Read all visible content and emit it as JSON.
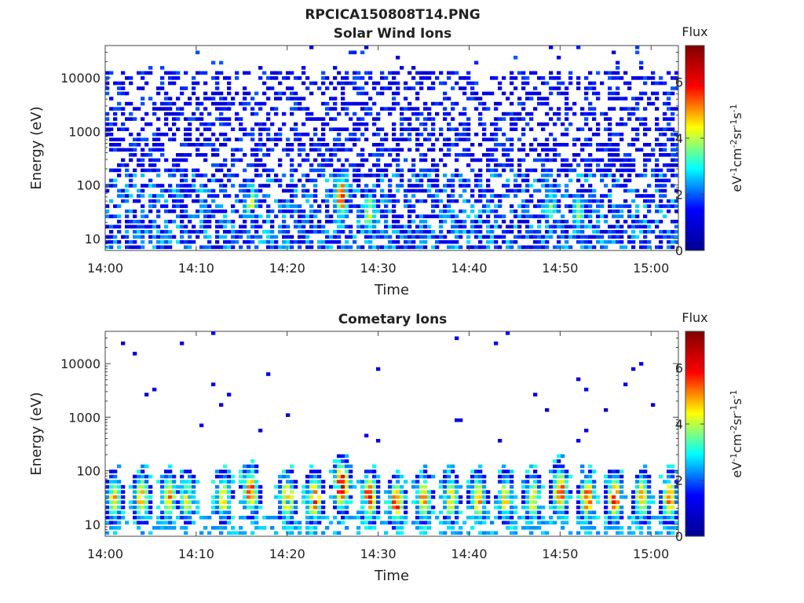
{
  "figure": {
    "title": "RPCICA150808T14.PNG"
  },
  "colormap": {
    "name": "jet",
    "stops": [
      "#00008f",
      "#0000ff",
      "#00ffff",
      "#ffff00",
      "#ff0000",
      "#800000"
    ]
  },
  "chart_data": [
    {
      "type": "heatmap",
      "title": "Solar Wind Ions",
      "xlabel": "Time",
      "ylabel": "Energy (eV)",
      "y_scale": "log",
      "ylim": [
        6,
        40000
      ],
      "xlim": [
        "14:00",
        "15:03"
      ],
      "x_ticks": [
        "14:00",
        "14:10",
        "14:20",
        "14:30",
        "14:40",
        "14:50",
        "15:00"
      ],
      "y_ticks": [
        10,
        100,
        1000,
        10000
      ],
      "y_tick_labels": [
        "10",
        "100",
        "1000",
        "10000"
      ],
      "colorbar": {
        "label_top": "Flux",
        "units": "eV-1cm-2sr-1s-1",
        "range": [
          0,
          7.3
        ],
        "ticks": [
          0,
          2,
          4,
          6
        ],
        "tick_labels": [
          "0",
          "2",
          "4",
          "6"
        ]
      },
      "features": {
        "background": "sparse low-flux (~1-2) counts from 10 eV to 20000 eV",
        "bursts": [
          {
            "time": "14:16",
            "energy_eV": 50,
            "flux": 4.5
          },
          {
            "time": "14:26",
            "energy_eV": 60,
            "flux": 6.0
          },
          {
            "time": "14:29",
            "energy_eV": 30,
            "flux": 4.5
          },
          {
            "time": "14:49",
            "energy_eV": 40,
            "flux": 4.0
          },
          {
            "time": "14:52",
            "energy_eV": 30,
            "flux": 4.0
          }
        ]
      }
    },
    {
      "type": "heatmap",
      "title": "Cometary Ions",
      "xlabel": "Time",
      "ylabel": "Energy (eV)",
      "y_scale": "log",
      "ylim": [
        6,
        40000
      ],
      "xlim": [
        "14:00",
        "15:03"
      ],
      "x_ticks": [
        "14:00",
        "14:10",
        "14:20",
        "14:30",
        "14:40",
        "14:50",
        "15:00"
      ],
      "y_ticks": [
        10,
        100,
        1000,
        10000
      ],
      "y_tick_labels": [
        "10",
        "100",
        "1000",
        "10000"
      ],
      "colorbar": {
        "label_top": "Flux",
        "units": "eV-1cm-2sr-1s-1",
        "range": [
          0,
          7.3
        ],
        "ticks": [
          0,
          2,
          4,
          6
        ],
        "tick_labels": [
          "0",
          "2",
          "4",
          "6"
        ]
      },
      "features": {
        "background": "few isolated low-flux counts above 300 eV",
        "bursts": [
          {
            "time": "14:01",
            "energy_eV": 30,
            "flux": 5.0
          },
          {
            "time": "14:04",
            "energy_eV": 30,
            "flux": 5.5
          },
          {
            "time": "14:07",
            "energy_eV": 30,
            "flux": 5.5
          },
          {
            "time": "14:09",
            "energy_eV": 30,
            "flux": 5.0
          },
          {
            "time": "14:13",
            "energy_eV": 30,
            "flux": 5.0
          },
          {
            "time": "14:16",
            "energy_eV": 40,
            "flux": 6.0
          },
          {
            "time": "14:20",
            "energy_eV": 30,
            "flux": 5.5
          },
          {
            "time": "14:23",
            "energy_eV": 30,
            "flux": 6.0
          },
          {
            "time": "14:26",
            "energy_eV": 50,
            "flux": 7.0
          },
          {
            "time": "14:29",
            "energy_eV": 30,
            "flux": 6.5
          },
          {
            "time": "14:32",
            "energy_eV": 25,
            "flux": 6.0
          },
          {
            "time": "14:35",
            "energy_eV": 30,
            "flux": 5.5
          },
          {
            "time": "14:38",
            "energy_eV": 30,
            "flux": 5.0
          },
          {
            "time": "14:41",
            "energy_eV": 30,
            "flux": 5.5
          },
          {
            "time": "14:44",
            "energy_eV": 30,
            "flux": 5.0
          },
          {
            "time": "14:47",
            "energy_eV": 30,
            "flux": 5.0
          },
          {
            "time": "14:50",
            "energy_eV": 40,
            "flux": 6.0
          },
          {
            "time": "14:53",
            "energy_eV": 30,
            "flux": 6.0
          },
          {
            "time": "14:56",
            "energy_eV": 30,
            "flux": 6.0
          },
          {
            "time": "14:59",
            "energy_eV": 30,
            "flux": 5.5
          },
          {
            "time": "15:02",
            "energy_eV": 30,
            "flux": 5.5
          }
        ]
      }
    }
  ]
}
